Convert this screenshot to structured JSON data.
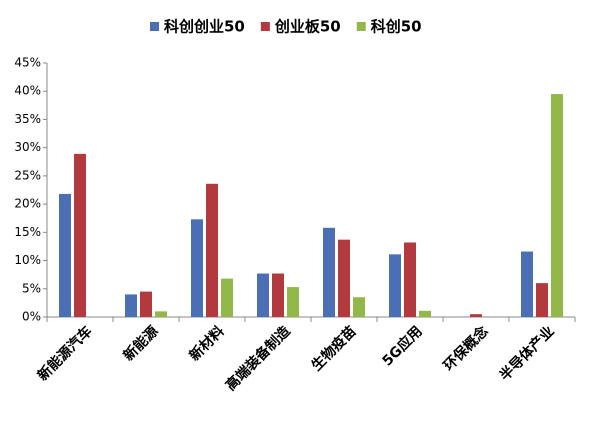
{
  "chart_data": {
    "type": "bar",
    "categories": [
      "新能源汽车",
      "新能源",
      "新材料",
      "高端装备制造",
      "生物疫苗",
      "5G应用",
      "环保概念",
      "半导体产业"
    ],
    "series": [
      {
        "name": "科创创业50",
        "color": "#4a6fb5",
        "values": [
          21.8,
          4.0,
          17.3,
          7.7,
          15.8,
          11.1,
          0,
          11.6
        ]
      },
      {
        "name": "创业板50",
        "color": "#b2393e",
        "values": [
          28.9,
          4.5,
          23.6,
          7.7,
          13.7,
          13.2,
          0.5,
          6.0
        ]
      },
      {
        "name": "科创50",
        "color": "#93b84a",
        "values": [
          0,
          1.0,
          6.8,
          5.3,
          3.5,
          1.1,
          0,
          39.5
        ]
      }
    ],
    "ylim": [
      0,
      45
    ],
    "yticks": [
      {
        "value": 0,
        "label": "0%"
      },
      {
        "value": 5,
        "label": "5%"
      },
      {
        "value": 10,
        "label": "10%"
      },
      {
        "value": 15,
        "label": "15%"
      },
      {
        "value": 20,
        "label": "20%"
      },
      {
        "value": 25,
        "label": "25%"
      },
      {
        "value": 30,
        "label": "30%"
      },
      {
        "value": 35,
        "label": "35%"
      },
      {
        "value": 40,
        "label": "40%"
      },
      {
        "value": 45,
        "label": "45%"
      }
    ],
    "legend": "top"
  }
}
